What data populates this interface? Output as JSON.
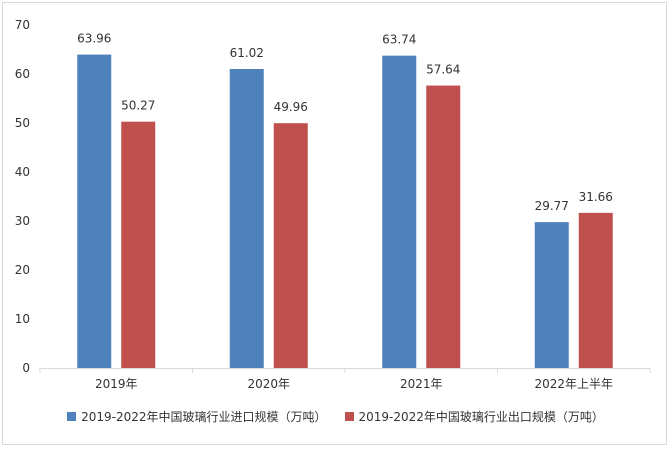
{
  "chart_data": {
    "type": "bar",
    "categories": [
      "2019年",
      "2020年",
      "2021年",
      "2022年上半年"
    ],
    "series": [
      {
        "name": "2019-2022年中国玻璃行业进口规模（万吨）",
        "values": [
          63.96,
          61.02,
          63.74,
          29.77
        ],
        "color": "#4f81bd"
      },
      {
        "name": "2019-2022年中国玻璃行业出口规模（万吨）",
        "values": [
          50.27,
          49.96,
          57.64,
          31.66
        ],
        "color": "#c0504d"
      }
    ],
    "value_labels": [
      [
        "63.96",
        "61.02",
        "63.74",
        "29.77"
      ],
      [
        "50.27",
        "49.96",
        "57.64",
        "31.66"
      ]
    ],
    "yticks": [
      "0",
      "10",
      "20",
      "30",
      "40",
      "50",
      "60",
      "70"
    ],
    "ylim": [
      0,
      70
    ],
    "grid": false,
    "legend_position": "bottom",
    "title": "",
    "xlabel": "",
    "ylabel": ""
  }
}
